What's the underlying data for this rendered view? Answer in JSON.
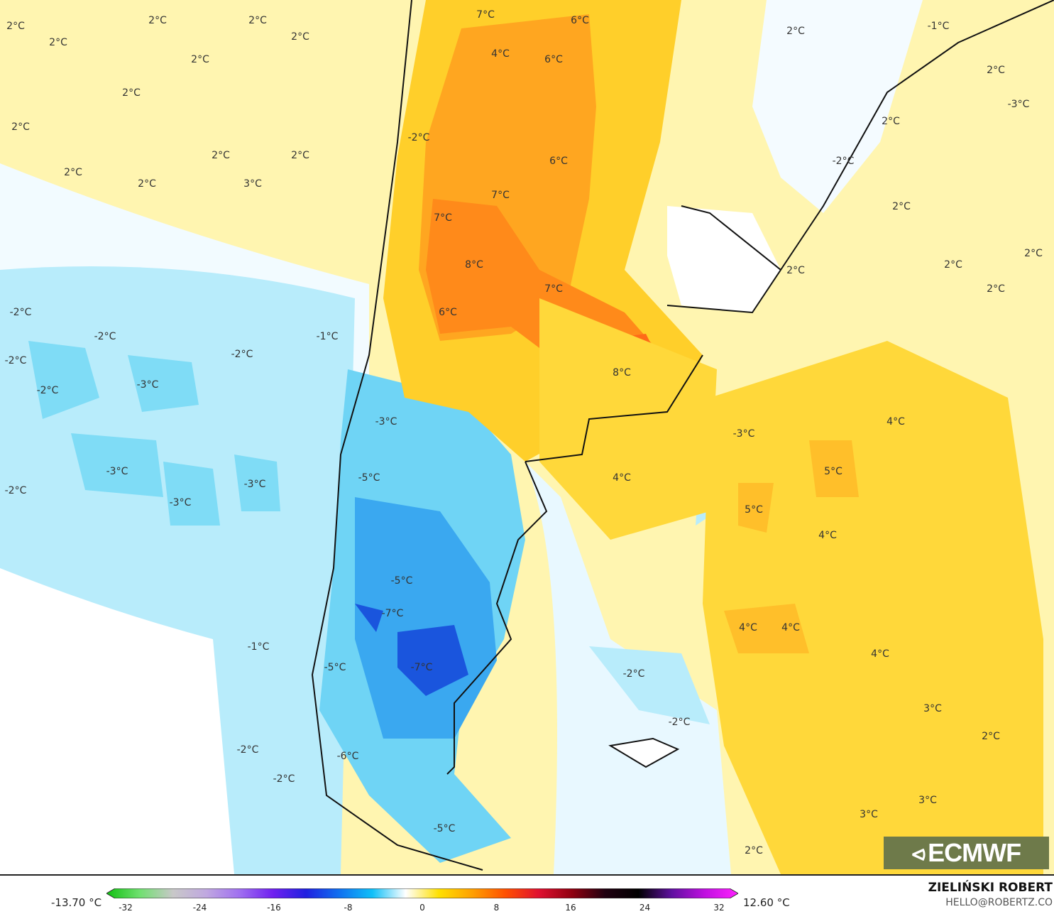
{
  "map": {
    "labels": [
      "2°C",
      "2°C",
      "2°C",
      "2°C",
      "2°C",
      "2°C",
      "2°C",
      "2°C",
      "2°C",
      "2°C",
      "2°C",
      "2°C",
      "3°C",
      "7°C",
      "6°C",
      "4°C",
      "6°C",
      "2°C",
      "-1°C",
      "2°C",
      "-3°C",
      "2°C",
      "-2°C",
      "6°C",
      "-2°C",
      "7°C",
      "7°C",
      "2°C",
      "2°C",
      "2°C",
      "8°C",
      "2°C",
      "7°C",
      "2°C",
      "-2°C",
      "6°C",
      "-1°C",
      "-2°C",
      "-2°C",
      "-2°C",
      "8°C",
      "-3°C",
      "-2°C",
      "-3°C",
      "4°C",
      "-3°C",
      "-3°C",
      "5°C",
      "4°C",
      "-5°C",
      "-3°C",
      "-2°C",
      "-3°C",
      "5°C",
      "4°C",
      "-5°C",
      "-7°C",
      "4°C",
      "4°C",
      "-1°C",
      "4°C",
      "-7°C",
      "-5°C",
      "-2°C",
      "3°C",
      "-2°C",
      "2°C",
      "-2°C",
      "-6°C",
      "-2°C",
      "3°C",
      "3°C",
      "-5°C",
      "2°C"
    ],
    "logo": "ECMWF"
  },
  "legend": {
    "min_label": "-13.70 °C",
    "max_label": "12.60 °C",
    "ticks": [
      "-32",
      "-24",
      "-16",
      "-8",
      "0",
      "8",
      "16",
      "24",
      "32"
    ],
    "range": [
      -32,
      32
    ],
    "colors": [
      "#10c010",
      "#70e070",
      "#c8c8c8",
      "#c0a8e0",
      "#a070f0",
      "#7020f0",
      "#2020e0",
      "#1070f0",
      "#10c0f8",
      "#ffffff",
      "#ffe000",
      "#ffa000",
      "#ff5000",
      "#e01030",
      "#900010",
      "#200010",
      "#000000",
      "#6010a0",
      "#c010e0",
      "#ff20ff"
    ]
  },
  "credits": {
    "author": "ZIELIŃSKI ROBERT",
    "email": "HELLO@ROBERTZ.CO"
  }
}
